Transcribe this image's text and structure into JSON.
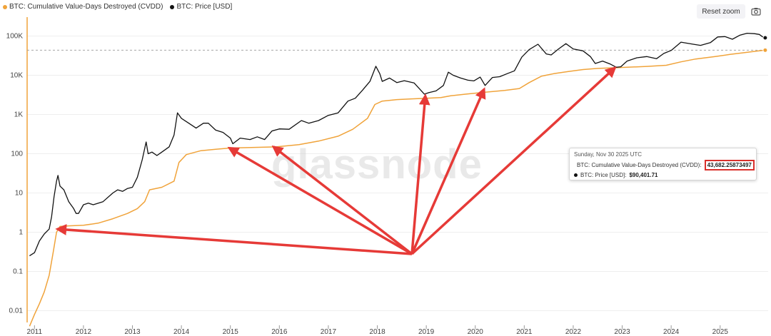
{
  "legend": {
    "items": [
      {
        "label": "BTC: Cumulative Value-Days Destroyed (CVDD)",
        "color": "#f0a33a"
      },
      {
        "label": "BTC: Price [USD]",
        "color": "#111111"
      }
    ]
  },
  "toolbar": {
    "reset_zoom_label": "Reset zoom",
    "camera_icon": "camera-icon"
  },
  "watermark": "glassnode",
  "tooltip": {
    "date": "Sunday, Nov 30 2025 UTC",
    "cvdd_label": "BTC: Cumulative Value-Days Destroyed (CVDD):",
    "cvdd_value": "43,682.25873497",
    "price_label": "BTC: Price [USD]:",
    "price_value": "$90,401.71"
  },
  "colors": {
    "price": "#111111",
    "cvdd": "#f0a33a",
    "arrows": "#e63a37",
    "highlight_box": "#d9302c"
  },
  "chart_data": {
    "type": "line",
    "y_scale": "log",
    "ylim": [
      0.005,
      200000
    ],
    "xlim": [
      2010.85,
      2025.98
    ],
    "y_ticks": [
      {
        "value": 0.01,
        "label": "0.01"
      },
      {
        "value": 0.1,
        "label": "0.1"
      },
      {
        "value": 1,
        "label": "1"
      },
      {
        "value": 10,
        "label": "10"
      },
      {
        "value": 100,
        "label": "100"
      },
      {
        "value": 1000,
        "label": "1K"
      },
      {
        "value": 10000,
        "label": "10K"
      },
      {
        "value": 100000,
        "label": "100K"
      }
    ],
    "x_ticks": [
      {
        "value": 2011,
        "label": "2011"
      },
      {
        "value": 2012,
        "label": "2012"
      },
      {
        "value": 2013,
        "label": "2013"
      },
      {
        "value": 2014,
        "label": "2014"
      },
      {
        "value": 2015,
        "label": "2015"
      },
      {
        "value": 2016,
        "label": "2016"
      },
      {
        "value": 2017,
        "label": "2017"
      },
      {
        "value": 2018,
        "label": "2018"
      },
      {
        "value": 2019,
        "label": "2019"
      },
      {
        "value": 2020,
        "label": "2020"
      },
      {
        "value": 2021,
        "label": "2021"
      },
      {
        "value": 2022,
        "label": "2022"
      },
      {
        "value": 2023,
        "label": "2023"
      },
      {
        "value": 2024,
        "label": "2024"
      },
      {
        "value": 2025,
        "label": "2025"
      }
    ],
    "series": [
      {
        "name": "BTC: Price [USD]",
        "color": "#111111",
        "points": [
          [
            2010.9,
            0.25
          ],
          [
            2011.0,
            0.3
          ],
          [
            2011.1,
            0.6
          ],
          [
            2011.2,
            0.9
          ],
          [
            2011.3,
            1.2
          ],
          [
            2011.35,
            2.5
          ],
          [
            2011.4,
            8
          ],
          [
            2011.45,
            20
          ],
          [
            2011.48,
            28
          ],
          [
            2011.52,
            15
          ],
          [
            2011.6,
            12
          ],
          [
            2011.7,
            6
          ],
          [
            2011.8,
            4
          ],
          [
            2011.85,
            3
          ],
          [
            2011.9,
            3
          ],
          [
            2012.0,
            5
          ],
          [
            2012.1,
            5.5
          ],
          [
            2012.2,
            5
          ],
          [
            2012.4,
            6
          ],
          [
            2012.6,
            10
          ],
          [
            2012.7,
            12
          ],
          [
            2012.8,
            11
          ],
          [
            2012.9,
            13
          ],
          [
            2013.0,
            14
          ],
          [
            2013.1,
            25
          ],
          [
            2013.2,
            70
          ],
          [
            2013.28,
            200
          ],
          [
            2013.32,
            100
          ],
          [
            2013.4,
            110
          ],
          [
            2013.5,
            90
          ],
          [
            2013.6,
            110
          ],
          [
            2013.75,
            150
          ],
          [
            2013.85,
            300
          ],
          [
            2013.92,
            1100
          ],
          [
            2014.0,
            800
          ],
          [
            2014.15,
            600
          ],
          [
            2014.3,
            450
          ],
          [
            2014.45,
            600
          ],
          [
            2014.55,
            600
          ],
          [
            2014.7,
            400
          ],
          [
            2014.85,
            350
          ],
          [
            2015.0,
            250
          ],
          [
            2015.05,
            180
          ],
          [
            2015.2,
            250
          ],
          [
            2015.4,
            230
          ],
          [
            2015.55,
            270
          ],
          [
            2015.7,
            230
          ],
          [
            2015.85,
            380
          ],
          [
            2016.0,
            430
          ],
          [
            2016.2,
            420
          ],
          [
            2016.45,
            700
          ],
          [
            2016.6,
            600
          ],
          [
            2016.8,
            700
          ],
          [
            2017.0,
            950
          ],
          [
            2017.2,
            1100
          ],
          [
            2017.4,
            2200
          ],
          [
            2017.55,
            2600
          ],
          [
            2017.7,
            4200
          ],
          [
            2017.85,
            7000
          ],
          [
            2017.97,
            17000
          ],
          [
            2018.05,
            11000
          ],
          [
            2018.1,
            7000
          ],
          [
            2018.25,
            8500
          ],
          [
            2018.4,
            6500
          ],
          [
            2018.55,
            7300
          ],
          [
            2018.75,
            6400
          ],
          [
            2018.9,
            4000
          ],
          [
            2018.96,
            3300
          ],
          [
            2019.05,
            3600
          ],
          [
            2019.2,
            4000
          ],
          [
            2019.35,
            5500
          ],
          [
            2019.45,
            12000
          ],
          [
            2019.55,
            10000
          ],
          [
            2019.7,
            8500
          ],
          [
            2019.85,
            7500
          ],
          [
            2019.97,
            7200
          ],
          [
            2020.1,
            9000
          ],
          [
            2020.2,
            5500
          ],
          [
            2020.35,
            8800
          ],
          [
            2020.5,
            9200
          ],
          [
            2020.65,
            11000
          ],
          [
            2020.8,
            13000
          ],
          [
            2020.95,
            29000
          ],
          [
            2021.1,
            45000
          ],
          [
            2021.28,
            62000
          ],
          [
            2021.45,
            35000
          ],
          [
            2021.55,
            33000
          ],
          [
            2021.7,
            47000
          ],
          [
            2021.85,
            64000
          ],
          [
            2022.0,
            47000
          ],
          [
            2022.2,
            42000
          ],
          [
            2022.35,
            30000
          ],
          [
            2022.45,
            20000
          ],
          [
            2022.6,
            23000
          ],
          [
            2022.75,
            19500
          ],
          [
            2022.88,
            16000
          ],
          [
            2022.97,
            16500
          ],
          [
            2023.1,
            23000
          ],
          [
            2023.3,
            28000
          ],
          [
            2023.5,
            30000
          ],
          [
            2023.7,
            26500
          ],
          [
            2023.85,
            36000
          ],
          [
            2024.0,
            43000
          ],
          [
            2024.2,
            70000
          ],
          [
            2024.45,
            62000
          ],
          [
            2024.6,
            58000
          ],
          [
            2024.8,
            68000
          ],
          [
            2024.95,
            95000
          ],
          [
            2025.1,
            97000
          ],
          [
            2025.25,
            83000
          ],
          [
            2025.4,
            105000
          ],
          [
            2025.55,
            118000
          ],
          [
            2025.7,
            115000
          ],
          [
            2025.8,
            110000
          ],
          [
            2025.87,
            95000
          ],
          [
            2025.92,
            90401.71
          ]
        ]
      },
      {
        "name": "BTC: Cumulative Value-Days Destroyed (CVDD)",
        "color": "#f0a33a",
        "points": [
          [
            2010.9,
            0.004
          ],
          [
            2011.0,
            0.008
          ],
          [
            2011.1,
            0.015
          ],
          [
            2011.2,
            0.03
          ],
          [
            2011.3,
            0.08
          ],
          [
            2011.38,
            0.3
          ],
          [
            2011.45,
            1.0
          ],
          [
            2011.52,
            1.4
          ],
          [
            2011.7,
            1.45
          ],
          [
            2012.0,
            1.5
          ],
          [
            2012.3,
            1.7
          ],
          [
            2012.6,
            2.2
          ],
          [
            2012.9,
            3.0
          ],
          [
            2013.1,
            4
          ],
          [
            2013.25,
            6
          ],
          [
            2013.35,
            12
          ],
          [
            2013.6,
            14
          ],
          [
            2013.85,
            20
          ],
          [
            2013.95,
            60
          ],
          [
            2014.1,
            95
          ],
          [
            2014.4,
            120
          ],
          [
            2014.7,
            130
          ],
          [
            2015.0,
            140
          ],
          [
            2015.5,
            145
          ],
          [
            2015.95,
            150
          ],
          [
            2016.4,
            170
          ],
          [
            2016.8,
            210
          ],
          [
            2017.2,
            280
          ],
          [
            2017.5,
            420
          ],
          [
            2017.8,
            800
          ],
          [
            2017.95,
            1800
          ],
          [
            2018.1,
            2200
          ],
          [
            2018.4,
            2400
          ],
          [
            2018.7,
            2500
          ],
          [
            2019.0,
            2600
          ],
          [
            2019.3,
            2700
          ],
          [
            2019.5,
            3000
          ],
          [
            2019.8,
            3300
          ],
          [
            2020.2,
            3700
          ],
          [
            2020.6,
            4100
          ],
          [
            2020.9,
            4600
          ],
          [
            2021.1,
            6500
          ],
          [
            2021.35,
            9500
          ],
          [
            2021.6,
            11000
          ],
          [
            2021.9,
            12500
          ],
          [
            2022.2,
            14000
          ],
          [
            2022.5,
            15000
          ],
          [
            2022.8,
            15500
          ],
          [
            2023.1,
            16000
          ],
          [
            2023.5,
            16800
          ],
          [
            2023.9,
            18000
          ],
          [
            2024.2,
            22000
          ],
          [
            2024.5,
            26000
          ],
          [
            2024.9,
            30000
          ],
          [
            2025.2,
            34000
          ],
          [
            2025.5,
            38000
          ],
          [
            2025.75,
            41500
          ],
          [
            2025.92,
            43682.25873497
          ]
        ]
      }
    ],
    "annotations": {
      "crosshair_value": 43682.25873497,
      "marker_x": 2025.92,
      "arrow_targets": [
        [
          2011.47,
          1.2
        ],
        [
          2014.98,
          140
        ],
        [
          2015.88,
          150
        ],
        [
          2018.98,
          3000
        ],
        [
          2020.18,
          4400
        ],
        [
          2022.85,
          15500
        ]
      ]
    }
  }
}
